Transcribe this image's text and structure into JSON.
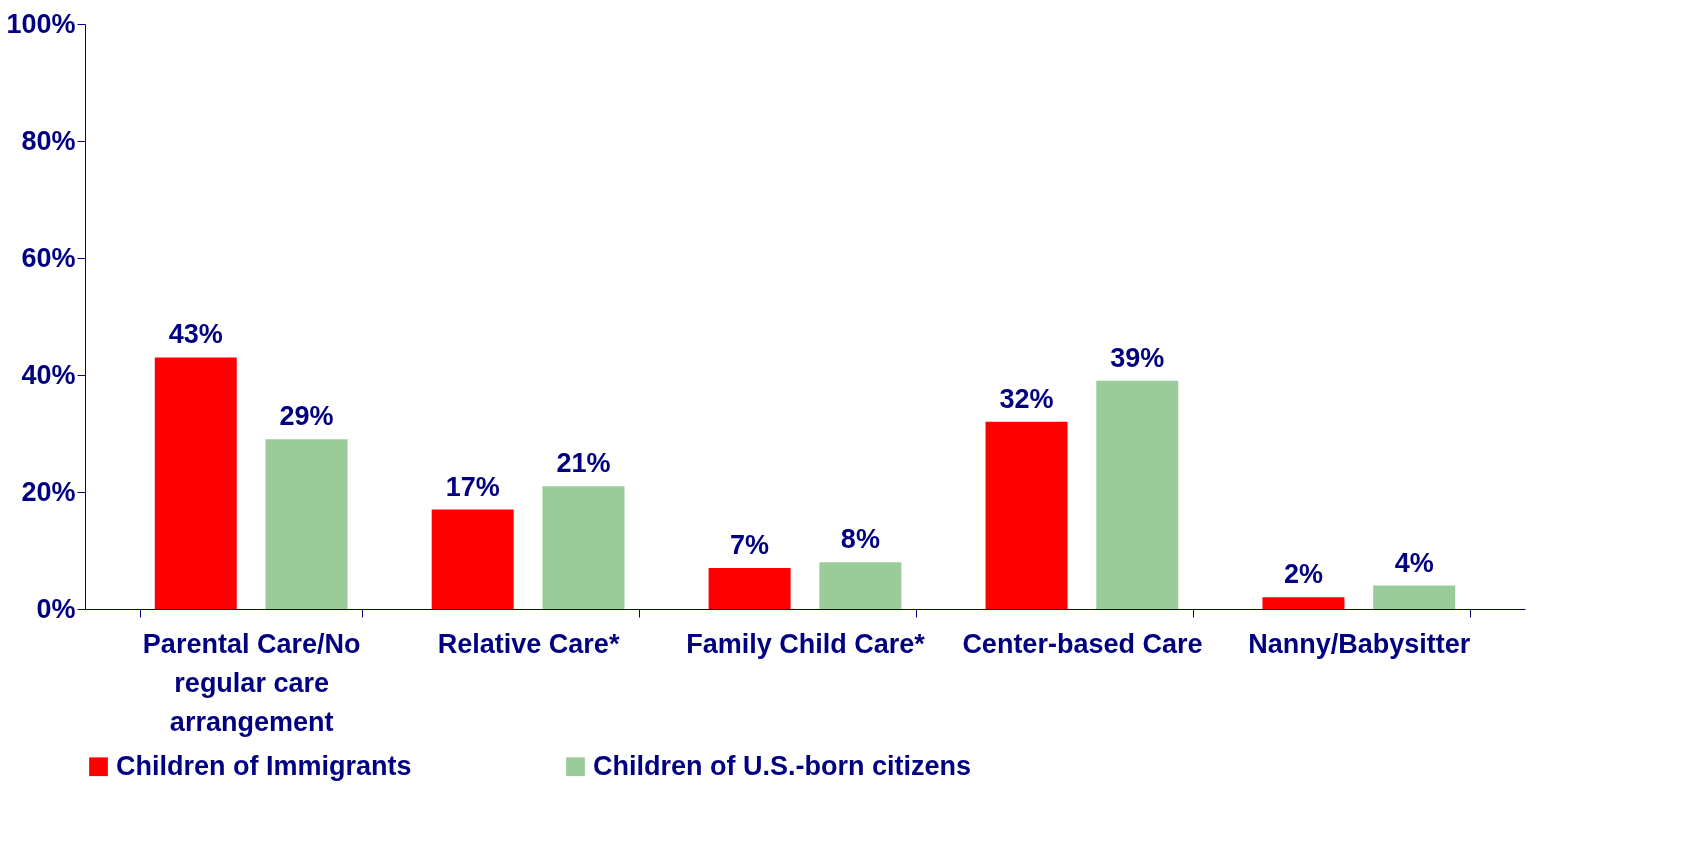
{
  "chart_data": {
    "type": "bar",
    "categories": [
      "Parental Care/No regular care arrangement",
      "Relative Care*",
      "Family Child Care*",
      "Center-based Care",
      "Nanny/Babysitter"
    ],
    "series": [
      {
        "name": "Children of Immigrants",
        "color": "#ff0000",
        "values": [
          43,
          17,
          7,
          32,
          2
        ],
        "value_labels": [
          "43%",
          "17%",
          "7%",
          "32%",
          "2%"
        ]
      },
      {
        "name": "Children of U.S.-born citizens",
        "color": "#99cc99",
        "values": [
          29,
          21,
          8,
          39,
          4
        ],
        "value_labels": [
          "29%",
          "21%",
          "8%",
          "39%",
          "4%"
        ]
      }
    ],
    "ylim": [
      0,
      100
    ],
    "yticks": [
      {
        "value": 0,
        "label": "0%"
      },
      {
        "value": 20,
        "label": "20%"
      },
      {
        "value": 40,
        "label": "40%"
      },
      {
        "value": 60,
        "label": "60%"
      },
      {
        "value": 80,
        "label": "80%"
      },
      {
        "value": 100,
        "label": "100%"
      }
    ],
    "grid": false,
    "legend": "bottom"
  }
}
